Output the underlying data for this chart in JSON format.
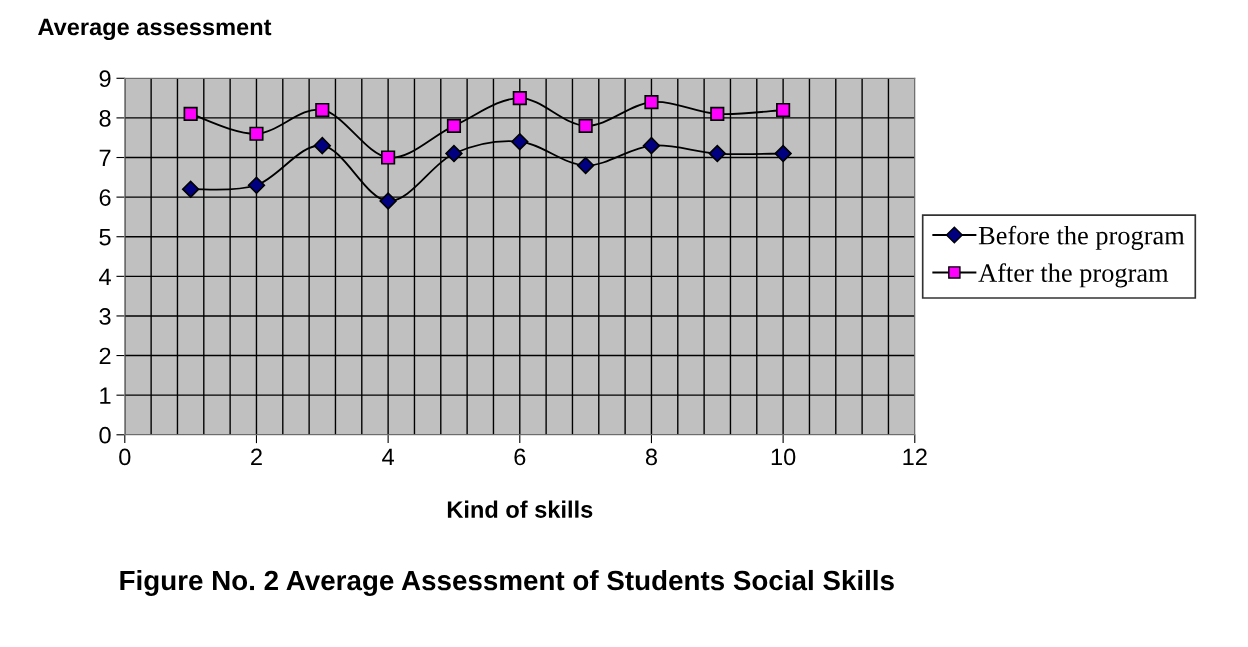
{
  "chart_data": {
    "type": "line",
    "title": "Figure No. 2 Average Assessment of Students Social Skills",
    "xlabel": "Kind of skills",
    "ylabel": "Average assessment",
    "x": [
      1,
      2,
      3,
      4,
      5,
      6,
      7,
      8,
      9,
      10
    ],
    "series": [
      {
        "name": "Before the program",
        "color": "#000080",
        "marker": "diamond",
        "values": [
          6.2,
          6.3,
          7.3,
          5.9,
          7.1,
          7.4,
          6.8,
          7.3,
          7.1,
          7.1
        ]
      },
      {
        "name": "After the program",
        "color": "#ff00ff",
        "marker": "square",
        "values": [
          8.1,
          7.6,
          8.2,
          7.0,
          7.8,
          8.5,
          7.8,
          8.4,
          8.1,
          8.2
        ]
      }
    ],
    "xlim": [
      0,
      12
    ],
    "ylim": [
      0,
      9
    ],
    "xticks": [
      0,
      {
        "value": 0.4,
        "label": null
      },
      {
        "value": 0.8,
        "label": null
      },
      {
        "value": 1.2,
        "label": null
      },
      {
        "value": 1.6,
        "label": null
      },
      2,
      {
        "value": 2.4,
        "label": null
      },
      {
        "value": 2.8,
        "label": null
      },
      {
        "value": 3.2,
        "label": null
      },
      {
        "value": 3.6,
        "label": null
      },
      4,
      {
        "value": 4.4,
        "label": null
      },
      {
        "value": 4.8,
        "label": null
      },
      {
        "value": 5.2,
        "label": null
      },
      {
        "value": 5.6,
        "label": null
      },
      6,
      {
        "value": 6.4,
        "label": null
      },
      {
        "value": 6.8,
        "label": null
      },
      {
        "value": 7.2,
        "label": null
      },
      {
        "value": 7.6,
        "label": null
      },
      8,
      {
        "value": 8.4,
        "label": null
      },
      {
        "value": 8.8,
        "label": null
      },
      {
        "value": 9.2,
        "label": null
      },
      {
        "value": 9.6,
        "label": null
      },
      10,
      {
        "value": 10.4,
        "label": null
      },
      {
        "value": 10.8,
        "label": null
      },
      {
        "value": 11.2,
        "label": null
      },
      {
        "value": 11.6,
        "label": null
      },
      12
    ],
    "yticks": [
      0,
      1,
      2,
      3,
      4,
      5,
      6,
      7,
      8,
      9
    ],
    "grid": true,
    "legend": "right",
    "line_style": "solid"
  }
}
